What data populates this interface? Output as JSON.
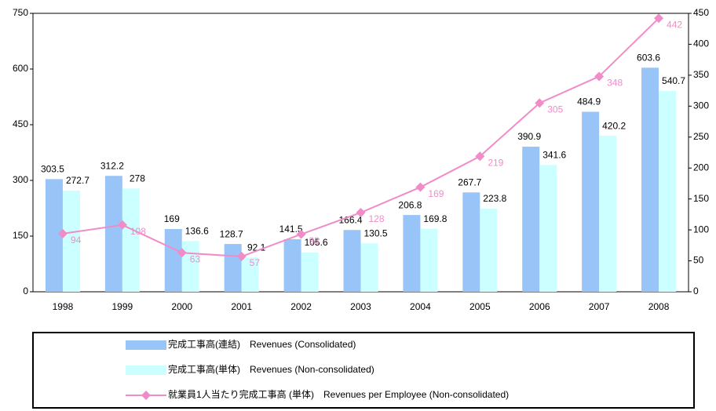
{
  "chart_data": {
    "type": "bar",
    "categories": [
      "1998",
      "1999",
      "2000",
      "2001",
      "2002",
      "2003",
      "2004",
      "2005",
      "2006",
      "2007",
      "2008"
    ],
    "series": [
      {
        "name": "完成工事高(連結)　Revenues (Consolidated)",
        "color": "#99c4f8",
        "values": [
          303.5,
          312.2,
          169,
          128.7,
          141.5,
          166.4,
          206.8,
          267.7,
          390.9,
          484.9,
          603.6
        ]
      },
      {
        "name": "完成工事高(単体)　Revenues (Non-consolidated)",
        "color": "#ccffff",
        "values": [
          272.7,
          278,
          136.6,
          92.1,
          105.6,
          130.5,
          169.8,
          223.8,
          341.6,
          420.2,
          540.7
        ]
      },
      {
        "name": "就業員1人当たり完成工事高 (単体)　Revenues per Employee (Non-consolidated)",
        "type": "line",
        "axis": "y2",
        "color": "#f08cc8",
        "values": [
          94,
          108,
          63,
          57,
          93,
          128,
          169,
          219,
          305,
          348,
          442
        ]
      }
    ],
    "ylim": [
      0,
      750
    ],
    "yticks": [
      0,
      150,
      300,
      450,
      600,
      750
    ],
    "y2lim": [
      0,
      450
    ],
    "y2ticks": [
      0,
      50,
      100,
      150,
      200,
      250,
      300,
      350,
      400,
      450
    ],
    "grid": false
  }
}
